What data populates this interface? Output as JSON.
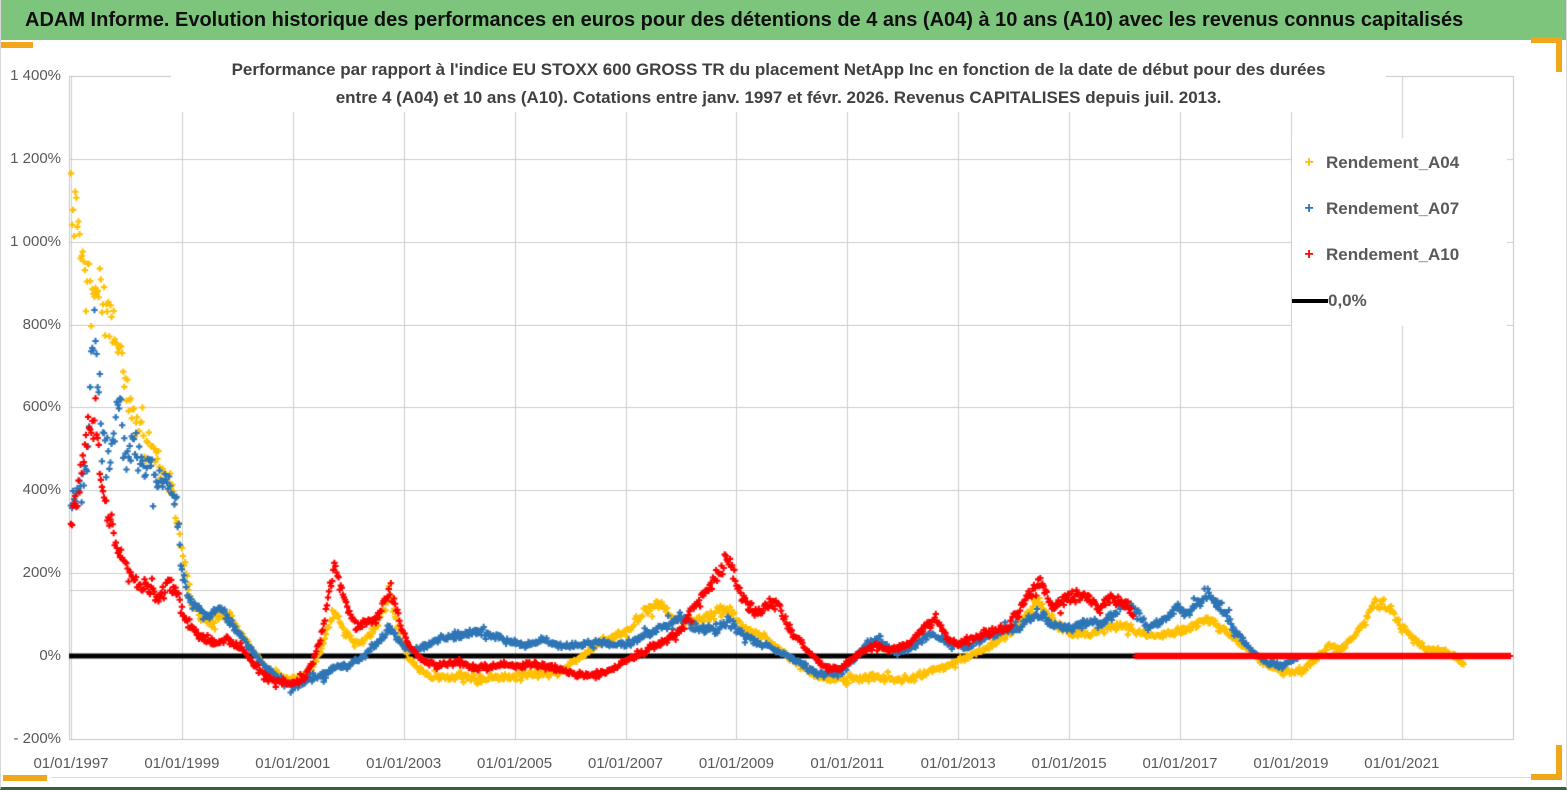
{
  "header": {
    "title": "ADAM Informe. Evolution historique des performances en euros pour des détentions de 4 ans (A04) à 10 ans (A10) avec les revenus connus capitalisés"
  },
  "chart": {
    "title_line1": "Performance par rapport à l'indice EU STOXX 600 GROSS TR  du placement NetApp Inc en fonction de la date de début pour des durées",
    "title_line2": "entre 4 (A04) et 10 ans (A10). Cotations entre janv. 1997 et févr. 2026. Revenus CAPITALISES depuis juil. 2013.",
    "legend": {
      "items": [
        {
          "label": "Rendement_A04",
          "marker": "plus",
          "color": "#FFC000"
        },
        {
          "label": "Rendement_A07",
          "marker": "plus",
          "color": "#2E75B6"
        },
        {
          "label": "Rendement_A10",
          "marker": "plus",
          "color": "#FE0000"
        },
        {
          "label": "0,0%",
          "marker": "line",
          "color": "#000000"
        }
      ]
    },
    "colors": {
      "header_green": "#7DC57D",
      "selection_gold": "#F2A71B",
      "gridline": "#CDCDCD",
      "plot_border": "#C6C6C6",
      "axis_text": "#595959",
      "title_text": "#404040",
      "zero_line": "#000000"
    }
  },
  "chart_data": {
    "type": "scatter",
    "marker": "plus",
    "grid": true,
    "legend_position": "top-right",
    "x_axis": {
      "ticks": [
        "01/01/1997",
        "01/01/1999",
        "01/01/2001",
        "01/01/2003",
        "01/01/2005",
        "01/01/2007",
        "01/01/2009",
        "01/01/2011",
        "01/01/2013",
        "01/01/2015",
        "01/01/2017",
        "01/01/2019",
        "01/01/2021"
      ],
      "tick_years": [
        1997,
        1999,
        2001,
        2003,
        2005,
        2007,
        2009,
        2011,
        2013,
        2015,
        2017,
        2019,
        2021
      ],
      "range_years": [
        1997.0,
        2023.0
      ]
    },
    "y_axis": {
      "ticks": [
        "1 400%",
        "1 200%",
        "1 000%",
        "800%",
        "600%",
        "400%",
        "200%",
        "0%",
        "- 200%"
      ],
      "tick_values": [
        1400,
        1200,
        1000,
        800,
        600,
        400,
        200,
        0,
        -200
      ],
      "range": [
        -200,
        1400
      ],
      "extra_gridline_value": 160
    },
    "zero_line": {
      "label": "0,0%",
      "color": "#000000",
      "value": 0,
      "from_year": 1997.0,
      "to_year": 2016.2
    },
    "a10_unknown_flat_segment": {
      "color": "#FE0000",
      "value": 0,
      "from_year": 2016.2,
      "to_year": 2022.95
    },
    "noise_model": {
      "base_pct": 6,
      "proportional": 0.095,
      "weekly_step_years": 0.019230769
    },
    "series": [
      {
        "name": "Rendement_A04",
        "color": "#FFC000",
        "anchors": [
          [
            1997.0,
            1120
          ],
          [
            1997.1,
            1030
          ],
          [
            1997.2,
            980
          ],
          [
            1997.3,
            940
          ],
          [
            1997.45,
            880
          ],
          [
            1997.6,
            830
          ],
          [
            1997.75,
            780
          ],
          [
            1997.9,
            700
          ],
          [
            1998.0,
            640
          ],
          [
            1998.2,
            560
          ],
          [
            1998.4,
            500
          ],
          [
            1998.6,
            460
          ],
          [
            1998.8,
            420
          ],
          [
            1999.0,
            250
          ],
          [
            1999.2,
            120
          ],
          [
            1999.4,
            80
          ],
          [
            1999.6,
            80
          ],
          [
            1999.7,
            105
          ],
          [
            1999.9,
            90
          ],
          [
            2000.1,
            50
          ],
          [
            2000.3,
            10
          ],
          [
            2000.5,
            -25
          ],
          [
            2000.8,
            -50
          ],
          [
            2001.0,
            -55
          ],
          [
            2001.3,
            -40
          ],
          [
            2001.5,
            10
          ],
          [
            2001.7,
            95
          ],
          [
            2001.75,
            110
          ],
          [
            2001.9,
            70
          ],
          [
            2002.1,
            30
          ],
          [
            2002.3,
            40
          ],
          [
            2002.5,
            70
          ],
          [
            2002.7,
            140
          ],
          [
            2002.75,
            160
          ],
          [
            2002.9,
            60
          ],
          [
            2003.1,
            -10
          ],
          [
            2003.4,
            -45
          ],
          [
            2003.7,
            -50
          ],
          [
            2004.0,
            -50
          ],
          [
            2004.5,
            -55
          ],
          [
            2005.0,
            -50
          ],
          [
            2005.5,
            -45
          ],
          [
            2005.8,
            -40
          ],
          [
            2006.2,
            0
          ],
          [
            2006.6,
            35
          ],
          [
            2007.0,
            60
          ],
          [
            2007.4,
            110
          ],
          [
            2007.6,
            125
          ],
          [
            2007.9,
            90
          ],
          [
            2008.2,
            80
          ],
          [
            2008.6,
            100
          ],
          [
            2008.85,
            115
          ],
          [
            2009.1,
            70
          ],
          [
            2009.5,
            45
          ],
          [
            2009.9,
            0
          ],
          [
            2010.3,
            -35
          ],
          [
            2010.6,
            -50
          ],
          [
            2011.0,
            -55
          ],
          [
            2011.5,
            -50
          ],
          [
            2012.0,
            -60
          ],
          [
            2012.4,
            -40
          ],
          [
            2012.8,
            -25
          ],
          [
            2013.2,
            0
          ],
          [
            2013.6,
            25
          ],
          [
            2014.0,
            60
          ],
          [
            2014.25,
            100
          ],
          [
            2014.4,
            135
          ],
          [
            2014.7,
            85
          ],
          [
            2015.0,
            55
          ],
          [
            2015.4,
            50
          ],
          [
            2015.8,
            75
          ],
          [
            2016.1,
            65
          ],
          [
            2016.5,
            45
          ],
          [
            2016.8,
            55
          ],
          [
            2017.1,
            65
          ],
          [
            2017.5,
            90
          ],
          [
            2017.8,
            60
          ],
          [
            2018.1,
            30
          ],
          [
            2018.5,
            -15
          ],
          [
            2018.8,
            -35
          ],
          [
            2019.2,
            -40
          ],
          [
            2019.5,
            0
          ],
          [
            2019.7,
            25
          ],
          [
            2019.9,
            15
          ],
          [
            2020.1,
            40
          ],
          [
            2020.3,
            75
          ],
          [
            2020.5,
            130
          ],
          [
            2020.65,
            125
          ],
          [
            2020.8,
            110
          ],
          [
            2021.0,
            70
          ],
          [
            2021.2,
            40
          ],
          [
            2021.4,
            20
          ],
          [
            2021.6,
            15
          ],
          [
            2021.8,
            12
          ],
          [
            2021.95,
            0
          ],
          [
            2022.12,
            -25
          ]
        ]
      },
      {
        "name": "Rendement_A07",
        "color": "#2E75B6",
        "anchors": [
          [
            1997.0,
            350
          ],
          [
            1997.15,
            420
          ],
          [
            1997.3,
            480
          ],
          [
            1997.4,
            780
          ],
          [
            1997.45,
            740
          ],
          [
            1997.55,
            520
          ],
          [
            1997.7,
            490
          ],
          [
            1997.85,
            600
          ],
          [
            1997.9,
            610
          ],
          [
            1998.0,
            480
          ],
          [
            1998.15,
            500
          ],
          [
            1998.3,
            460
          ],
          [
            1998.5,
            440
          ],
          [
            1998.7,
            420
          ],
          [
            1998.9,
            380
          ],
          [
            1999.0,
            200
          ],
          [
            1999.15,
            140
          ],
          [
            1999.3,
            110
          ],
          [
            1999.5,
            90
          ],
          [
            1999.7,
            120
          ],
          [
            1999.9,
            80
          ],
          [
            2000.1,
            40
          ],
          [
            2000.4,
            -10
          ],
          [
            2000.7,
            -50
          ],
          [
            2001.0,
            -75
          ],
          [
            2001.3,
            -55
          ],
          [
            2001.55,
            -45
          ],
          [
            2001.8,
            -25
          ],
          [
            2002.0,
            -25
          ],
          [
            2002.3,
            0
          ],
          [
            2002.6,
            40
          ],
          [
            2002.75,
            70
          ],
          [
            2002.9,
            40
          ],
          [
            2003.1,
            10
          ],
          [
            2003.4,
            25
          ],
          [
            2003.7,
            45
          ],
          [
            2004.0,
            50
          ],
          [
            2004.3,
            60
          ],
          [
            2004.6,
            50
          ],
          [
            2004.9,
            35
          ],
          [
            2005.2,
            25
          ],
          [
            2005.5,
            40
          ],
          [
            2005.8,
            25
          ],
          [
            2006.1,
            25
          ],
          [
            2006.5,
            35
          ],
          [
            2006.9,
            25
          ],
          [
            2007.2,
            40
          ],
          [
            2007.6,
            65
          ],
          [
            2008.0,
            95
          ],
          [
            2008.3,
            70
          ],
          [
            2008.6,
            60
          ],
          [
            2008.85,
            85
          ],
          [
            2009.1,
            55
          ],
          [
            2009.4,
            30
          ],
          [
            2009.7,
            15
          ],
          [
            2010.0,
            -5
          ],
          [
            2010.4,
            -40
          ],
          [
            2010.7,
            -45
          ],
          [
            2011.0,
            -25
          ],
          [
            2011.3,
            20
          ],
          [
            2011.55,
            45
          ],
          [
            2011.8,
            10
          ],
          [
            2012.1,
            15
          ],
          [
            2012.5,
            55
          ],
          [
            2012.8,
            35
          ],
          [
            2013.1,
            20
          ],
          [
            2013.5,
            45
          ],
          [
            2013.9,
            65
          ],
          [
            2014.2,
            80
          ],
          [
            2014.45,
            105
          ],
          [
            2014.7,
            75
          ],
          [
            2015.0,
            65
          ],
          [
            2015.3,
            85
          ],
          [
            2015.6,
            75
          ],
          [
            2015.9,
            110
          ],
          [
            2016.05,
            130
          ],
          [
            2016.4,
            70
          ],
          [
            2016.7,
            85
          ],
          [
            2016.95,
            115
          ],
          [
            2017.2,
            105
          ],
          [
            2017.45,
            150
          ],
          [
            2017.6,
            140
          ],
          [
            2017.8,
            110
          ],
          [
            2018.0,
            60
          ],
          [
            2018.3,
            10
          ],
          [
            2018.55,
            -15
          ],
          [
            2018.8,
            -25
          ],
          [
            2019.0,
            -10
          ],
          [
            2019.12,
            -5
          ]
        ]
      },
      {
        "name": "Rendement_A10",
        "color": "#FE0000",
        "anchors": [
          [
            1997.0,
            300
          ],
          [
            1997.15,
            420
          ],
          [
            1997.3,
            520
          ],
          [
            1997.42,
            600
          ],
          [
            1997.55,
            420
          ],
          [
            1997.7,
            330
          ],
          [
            1997.85,
            260
          ],
          [
            1998.0,
            210
          ],
          [
            1998.2,
            170
          ],
          [
            1998.45,
            160
          ],
          [
            1998.6,
            140
          ],
          [
            1998.75,
            180
          ],
          [
            1998.9,
            150
          ],
          [
            1999.05,
            90
          ],
          [
            1999.3,
            50
          ],
          [
            1999.55,
            30
          ],
          [
            1999.8,
            40
          ],
          [
            2000.05,
            20
          ],
          [
            2000.3,
            -20
          ],
          [
            2000.6,
            -55
          ],
          [
            2000.9,
            -65
          ],
          [
            2001.15,
            -60
          ],
          [
            2001.35,
            -20
          ],
          [
            2001.5,
            40
          ],
          [
            2001.6,
            110
          ],
          [
            2001.7,
            190
          ],
          [
            2001.75,
            235
          ],
          [
            2001.85,
            170
          ],
          [
            2002.0,
            110
          ],
          [
            2002.15,
            70
          ],
          [
            2002.35,
            80
          ],
          [
            2002.55,
            95
          ],
          [
            2002.7,
            150
          ],
          [
            2002.78,
            160
          ],
          [
            2002.95,
            70
          ],
          [
            2003.1,
            25
          ],
          [
            2003.35,
            -10
          ],
          [
            2003.6,
            -25
          ],
          [
            2003.9,
            -15
          ],
          [
            2004.2,
            -25
          ],
          [
            2004.5,
            -30
          ],
          [
            2004.8,
            -20
          ],
          [
            2005.1,
            -25
          ],
          [
            2005.4,
            -20
          ],
          [
            2005.7,
            -30
          ],
          [
            2006.0,
            -40
          ],
          [
            2006.4,
            -50
          ],
          [
            2006.8,
            -30
          ],
          [
            2007.1,
            -5
          ],
          [
            2007.4,
            15
          ],
          [
            2007.7,
            35
          ],
          [
            2008.0,
            60
          ],
          [
            2008.25,
            120
          ],
          [
            2008.5,
            160
          ],
          [
            2008.7,
            200
          ],
          [
            2008.8,
            245
          ],
          [
            2008.95,
            190
          ],
          [
            2009.15,
            130
          ],
          [
            2009.4,
            100
          ],
          [
            2009.6,
            130
          ],
          [
            2009.75,
            120
          ],
          [
            2010.0,
            60
          ],
          [
            2010.3,
            10
          ],
          [
            2010.6,
            -25
          ],
          [
            2010.9,
            -30
          ],
          [
            2011.2,
            5
          ],
          [
            2011.5,
            25
          ],
          [
            2011.8,
            15
          ],
          [
            2012.1,
            30
          ],
          [
            2012.4,
            70
          ],
          [
            2012.6,
            90
          ],
          [
            2012.8,
            45
          ],
          [
            2013.0,
            25
          ],
          [
            2013.3,
            45
          ],
          [
            2013.6,
            60
          ],
          [
            2013.9,
            70
          ],
          [
            2014.1,
            110
          ],
          [
            2014.3,
            150
          ],
          [
            2014.45,
            188
          ],
          [
            2014.7,
            120
          ],
          [
            2014.95,
            135
          ],
          [
            2015.2,
            150
          ],
          [
            2015.5,
            125
          ],
          [
            2015.75,
            140
          ],
          [
            2015.95,
            130
          ],
          [
            2016.05,
            120
          ],
          [
            2016.17,
            100
          ]
        ]
      }
    ]
  }
}
